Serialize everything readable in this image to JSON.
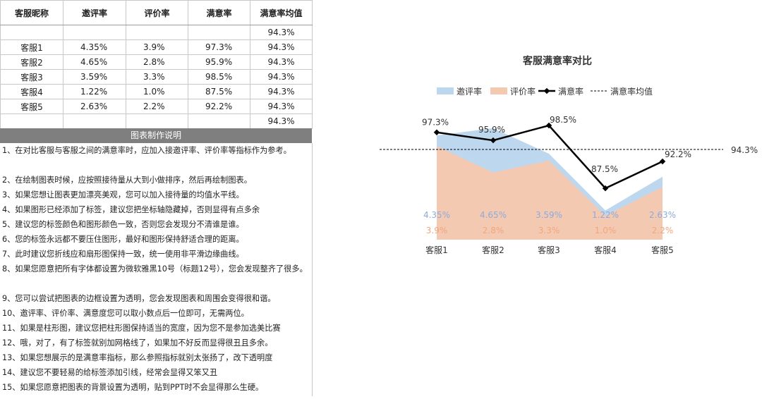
{
  "table": {
    "headers": [
      "客服昵称",
      "邀评率",
      "评价率",
      "满意率",
      "满意率均值"
    ],
    "rows": [
      [
        "",
        "",
        "",
        "",
        "94.3%"
      ],
      [
        "客服1",
        "4.35%",
        "3.9%",
        "97.3%",
        "94.3%"
      ],
      [
        "客服2",
        "4.65%",
        "2.8%",
        "95.9%",
        "94.3%"
      ],
      [
        "客服3",
        "3.59%",
        "3.3%",
        "98.5%",
        "94.3%"
      ],
      [
        "客服4",
        "1.22%",
        "1.0%",
        "87.5%",
        "94.3%"
      ],
      [
        "客服5",
        "2.63%",
        "2.2%",
        "92.2%",
        "94.3%"
      ],
      [
        "",
        "",
        "",
        "",
        "94.3%"
      ]
    ]
  },
  "notes": {
    "title": "图表制作说明",
    "items": [
      "1、在对比客服与客服之间的满意率时，应加入接邀评率、评价率等指标作为参考。",
      "2、在绘制图表时候，应按照接待量从大到小做排序，然后再绘制图表。",
      "3、如果您想让图表更加漂亮美观，您可以加入接待量的均值水平线。",
      "4、如果图形已经添加了标签，建议您把坐标轴隐藏掉，否则显得有点多余",
      "5、建议您的标签颜色和图形颜色一致，否则您会发现分不清谁是谁。",
      "6、您的标签永远都不要压住图形，最好和图形保持舒适合理的距离。",
      "7、此时建议您折线应和扇形图保持一致，统一使用非平滑边缘曲线。",
      "8、如果您愿意把所有字体都设置为微软雅黑10号（标题12号），您会发现整齐了很多。",
      "9、您可以尝试把图表的边框设置为透明，您会发现图表和周围会变得很和谐。",
      "10、邀评率、评价率、满意度您可以取小数点后一位即可，无需两位。",
      "11、如果是柱形图，建议您把柱形图保持适当的宽度，因为您不是参加选美比赛",
      "12、哦，对了，有了标签就别加网格线了，如果加不好反而显得很丑且多余。",
      "13、如果您想展示的是满意率指标，那么参照指标就别太张扬了，改下透明度",
      "14、建议您不要轻易的给标签添加引线，经常会显得又笨又丑",
      "15、如果您愿意把图表的背景设置为透明，贴到PPT时不会显得那么生硬。"
    ]
  },
  "chart_data": {
    "type": "line",
    "title": "客服满意率对比",
    "categories": [
      "客服1",
      "客服2",
      "客服3",
      "客服4",
      "客服5"
    ],
    "series": [
      {
        "name": "邀评率",
        "kind": "area",
        "color": "#bdd7ee",
        "values": [
          4.35,
          4.65,
          3.59,
          1.22,
          2.63
        ],
        "labels": [
          "4.35%",
          "4.65%",
          "3.59%",
          "1.22%",
          "2.63%"
        ],
        "label_color": "#8eaadb"
      },
      {
        "name": "评价率",
        "kind": "area",
        "color": "#f4c9b2",
        "values": [
          3.9,
          2.8,
          3.3,
          1.0,
          2.2
        ],
        "labels": [
          "3.9%",
          "2.8%",
          "3.3%",
          "1.0%",
          "2.2%"
        ],
        "label_color": "#f0a77c"
      },
      {
        "name": "满意率",
        "kind": "line",
        "color": "#000000",
        "values": [
          97.3,
          95.9,
          98.5,
          87.5,
          92.2
        ],
        "labels": [
          "97.3%",
          "95.9%",
          "98.5%",
          "87.5%",
          "92.2%"
        ]
      },
      {
        "name": "满意率均值",
        "kind": "dashed",
        "color": "#000000",
        "values": [
          94.3,
          94.3,
          94.3,
          94.3,
          94.3
        ],
        "label": "94.3%"
      }
    ],
    "grid": false,
    "legend": "top"
  }
}
